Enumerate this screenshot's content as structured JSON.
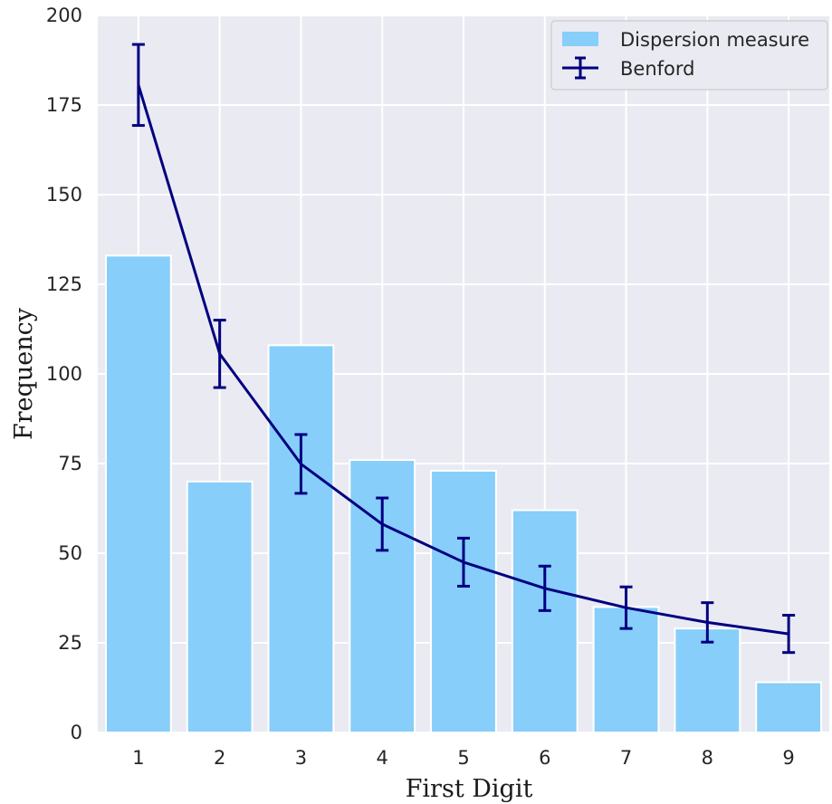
{
  "chart_data": {
    "type": "bar",
    "title": "",
    "xlabel": "First Digit",
    "ylabel": "Frequency",
    "categories": [
      "1",
      "2",
      "3",
      "4",
      "5",
      "6",
      "7",
      "8",
      "9"
    ],
    "ylim": [
      0,
      200
    ],
    "yticks": [
      "0",
      "25",
      "50",
      "75",
      "100",
      "125",
      "150",
      "175",
      "200"
    ],
    "grid": true,
    "legend_position": "top-right",
    "series": [
      {
        "name": "Dispersion measure",
        "type": "bar",
        "color": "#87CEFA",
        "values": [
          133,
          70,
          108,
          76,
          73,
          62,
          35,
          29,
          14
        ]
      },
      {
        "name": "Benford",
        "type": "line",
        "color": "#000080",
        "values": [
          180.6,
          105.6,
          74.9,
          58.1,
          47.5,
          40.2,
          34.8,
          30.7,
          27.5
        ],
        "error": [
          11.3,
          9.4,
          8.2,
          7.3,
          6.7,
          6.2,
          5.8,
          5.5,
          5.2
        ]
      }
    ]
  }
}
